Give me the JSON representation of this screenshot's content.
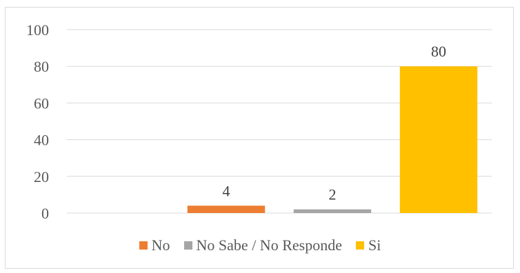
{
  "chart_data": {
    "type": "bar",
    "categories": [
      "No",
      "No Sabe / No Responde",
      "Si"
    ],
    "values": [
      4,
      2,
      80
    ],
    "colors": [
      "#ed7d31",
      "#a5a5a5",
      "#ffc000"
    ],
    "data_labels": [
      "4",
      "2",
      "80"
    ],
    "yticks": [
      "0",
      "20",
      "40",
      "60",
      "80",
      "100"
    ],
    "ylim": [
      0,
      100
    ],
    "grid": true,
    "legend_position": "bottom",
    "title": "",
    "xlabel": "",
    "ylabel": ""
  },
  "legend": [
    {
      "label": "No",
      "color": "#ed7d31"
    },
    {
      "label": "No Sabe / No Responde",
      "color": "#a5a5a5"
    },
    {
      "label": "Si",
      "color": "#ffc000"
    }
  ]
}
